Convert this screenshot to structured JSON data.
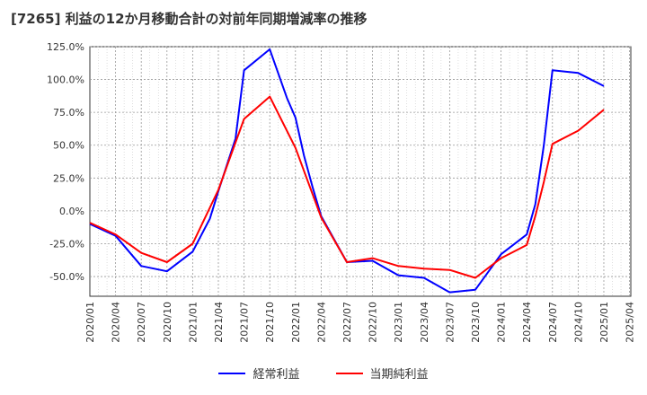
{
  "chart_data": {
    "type": "line",
    "title": "[7265]  利益の12か月移動合計の対前年同期増減率の推移",
    "xlabel": "",
    "ylabel": "",
    "ylim": [
      -65,
      125
    ],
    "yticks": [
      -50,
      -25,
      0,
      25,
      50,
      75,
      100,
      125
    ],
    "ytick_labels": [
      "-50.0%",
      "-25.0%",
      "0.0%",
      "25.0%",
      "50.0%",
      "75.0%",
      "100.0%",
      "125.0%"
    ],
    "categories": [
      "2020/01",
      "2020/04",
      "2020/07",
      "2020/10",
      "2021/01",
      "2021/04",
      "2021/07",
      "2021/10",
      "2022/01",
      "2022/04",
      "2022/07",
      "2022/10",
      "2023/01",
      "2023/04",
      "2023/07",
      "2023/10",
      "2024/01",
      "2024/04",
      "2024/07",
      "2024/10",
      "2025/01",
      "2025/04"
    ],
    "grid": true,
    "legend_position": "bottom",
    "series": [
      {
        "name": "経常利益",
        "color": "#0000ff",
        "x": [
          "2020/01",
          "2020/04",
          "2020/07",
          "2020/10",
          "2021/01",
          "2021/03",
          "2021/04",
          "2021/06",
          "2021/07",
          "2021/10",
          "2021/12",
          "2022/01",
          "2022/02",
          "2022/03",
          "2022/04",
          "2022/07",
          "2022/10",
          "2023/01",
          "2023/04",
          "2023/07",
          "2023/10",
          "2024/01",
          "2024/04",
          "2024/05",
          "2024/06",
          "2024/07",
          "2024/10",
          "2025/01"
        ],
        "values": [
          -10,
          -19,
          -42,
          -46,
          -31,
          -6,
          15,
          55,
          107,
          123,
          86,
          71,
          42,
          18,
          -4,
          -39,
          -38,
          -49,
          -51,
          -62,
          -60,
          -33,
          -18,
          5,
          50,
          107,
          105,
          95
        ]
      },
      {
        "name": "当期純利益",
        "color": "#ff0000",
        "x": [
          "2020/01",
          "2020/04",
          "2020/07",
          "2020/10",
          "2021/01",
          "2021/04",
          "2021/07",
          "2021/10",
          "2022/01",
          "2022/04",
          "2022/07",
          "2022/10",
          "2023/01",
          "2023/04",
          "2023/07",
          "2023/10",
          "2024/01",
          "2024/04",
          "2024/05",
          "2024/06",
          "2024/07",
          "2024/10",
          "2025/01"
        ],
        "values": [
          -9,
          -18,
          -32,
          -39,
          -25,
          16,
          70,
          87,
          48,
          -5,
          -39,
          -36,
          -42,
          -44,
          -45,
          -51,
          -36,
          -26,
          -4,
          22,
          51,
          61,
          77
        ]
      }
    ]
  }
}
